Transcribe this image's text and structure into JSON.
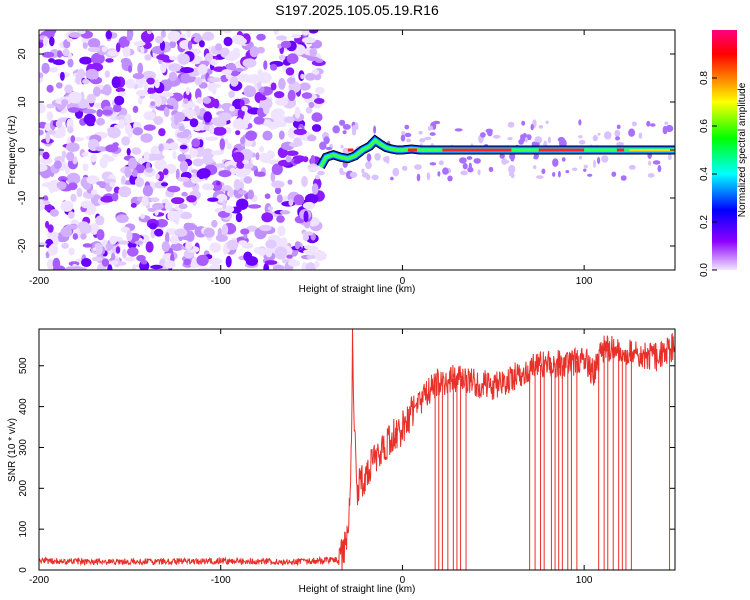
{
  "title": "S197.2025.105.05.19.R16",
  "chart_data": [
    {
      "type": "heatmap",
      "xlabel": "Height of straight line (km)",
      "ylabel": "Frequency (Hz)",
      "xlim": [
        -200,
        150
      ],
      "ylim": [
        -25,
        25
      ],
      "x_ticks": [
        "-200",
        "-100",
        "0",
        "100"
      ],
      "y_ticks": [
        "20",
        "10",
        "0",
        "-10",
        "-20"
      ],
      "colorbar": {
        "label": "Normalized spectral amplitude",
        "range": [
          0,
          1
        ],
        "ticks": [
          "0.0",
          "0.2",
          "0.4",
          "0.6",
          "0.8"
        ],
        "colors": [
          "#f2e6ff",
          "#8c00ff",
          "#0000ff",
          "#00ffff",
          "#00ff00",
          "#ffff00",
          "#ff8000",
          "#ff0000",
          "#ff0080"
        ]
      },
      "noise_region_x": [
        -200,
        -45
      ],
      "carrier_track": {
        "x": [
          -45,
          -42,
          -38,
          -34,
          -30,
          -26,
          -22,
          -18,
          -15,
          -12,
          -9,
          -6,
          -3,
          0,
          5,
          10,
          20,
          40,
          60,
          80,
          100,
          120,
          150
        ],
        "freq": [
          -3.5,
          -1.5,
          -1.0,
          -1.5,
          -1.8,
          -1.2,
          0.0,
          0.8,
          2.0,
          1.2,
          0.5,
          0.2,
          0.0,
          0.0,
          0.2,
          0.0,
          0.0,
          0.0,
          0.0,
          0.0,
          0.0,
          0.0,
          0.0
        ]
      }
    },
    {
      "type": "line",
      "xlabel": "Height of straight line (km)",
      "ylabel": "SNR (10 * v/v)",
      "xlim": [
        -200,
        150
      ],
      "ylim": [
        0,
        590
      ],
      "x_ticks": [
        "-200",
        "-100",
        "0",
        "100"
      ],
      "y_ticks": [
        "0",
        "100",
        "200",
        "300",
        "400",
        "500"
      ],
      "color": "#e8302a",
      "series": [
        {
          "x": [
            -200,
            -150,
            -100,
            -60,
            -35,
            -33,
            -31,
            -29,
            -28,
            -27.5,
            -27,
            -25,
            -20,
            -15,
            -10,
            -5,
            0,
            5,
            10,
            15,
            20,
            30,
            40,
            50,
            60,
            70,
            80,
            90,
            100,
            105,
            110,
            120,
            130,
            140,
            150
          ],
          "y": [
            22,
            20,
            22,
            20,
            25,
            40,
            80,
            150,
            300,
            560,
            420,
            200,
            230,
            280,
            300,
            330,
            350,
            380,
            410,
            440,
            460,
            470,
            460,
            450,
            470,
            490,
            510,
            500,
            520,
            480,
            540,
            540,
            530,
            520,
            550
          ]
        }
      ],
      "dropouts_x": [
        18,
        20,
        22,
        25,
        28,
        30,
        32,
        35,
        70,
        73,
        76,
        78,
        82,
        84,
        86,
        88,
        91,
        93,
        96,
        108,
        111,
        113,
        116,
        119,
        121,
        123,
        126,
        147
      ]
    }
  ]
}
